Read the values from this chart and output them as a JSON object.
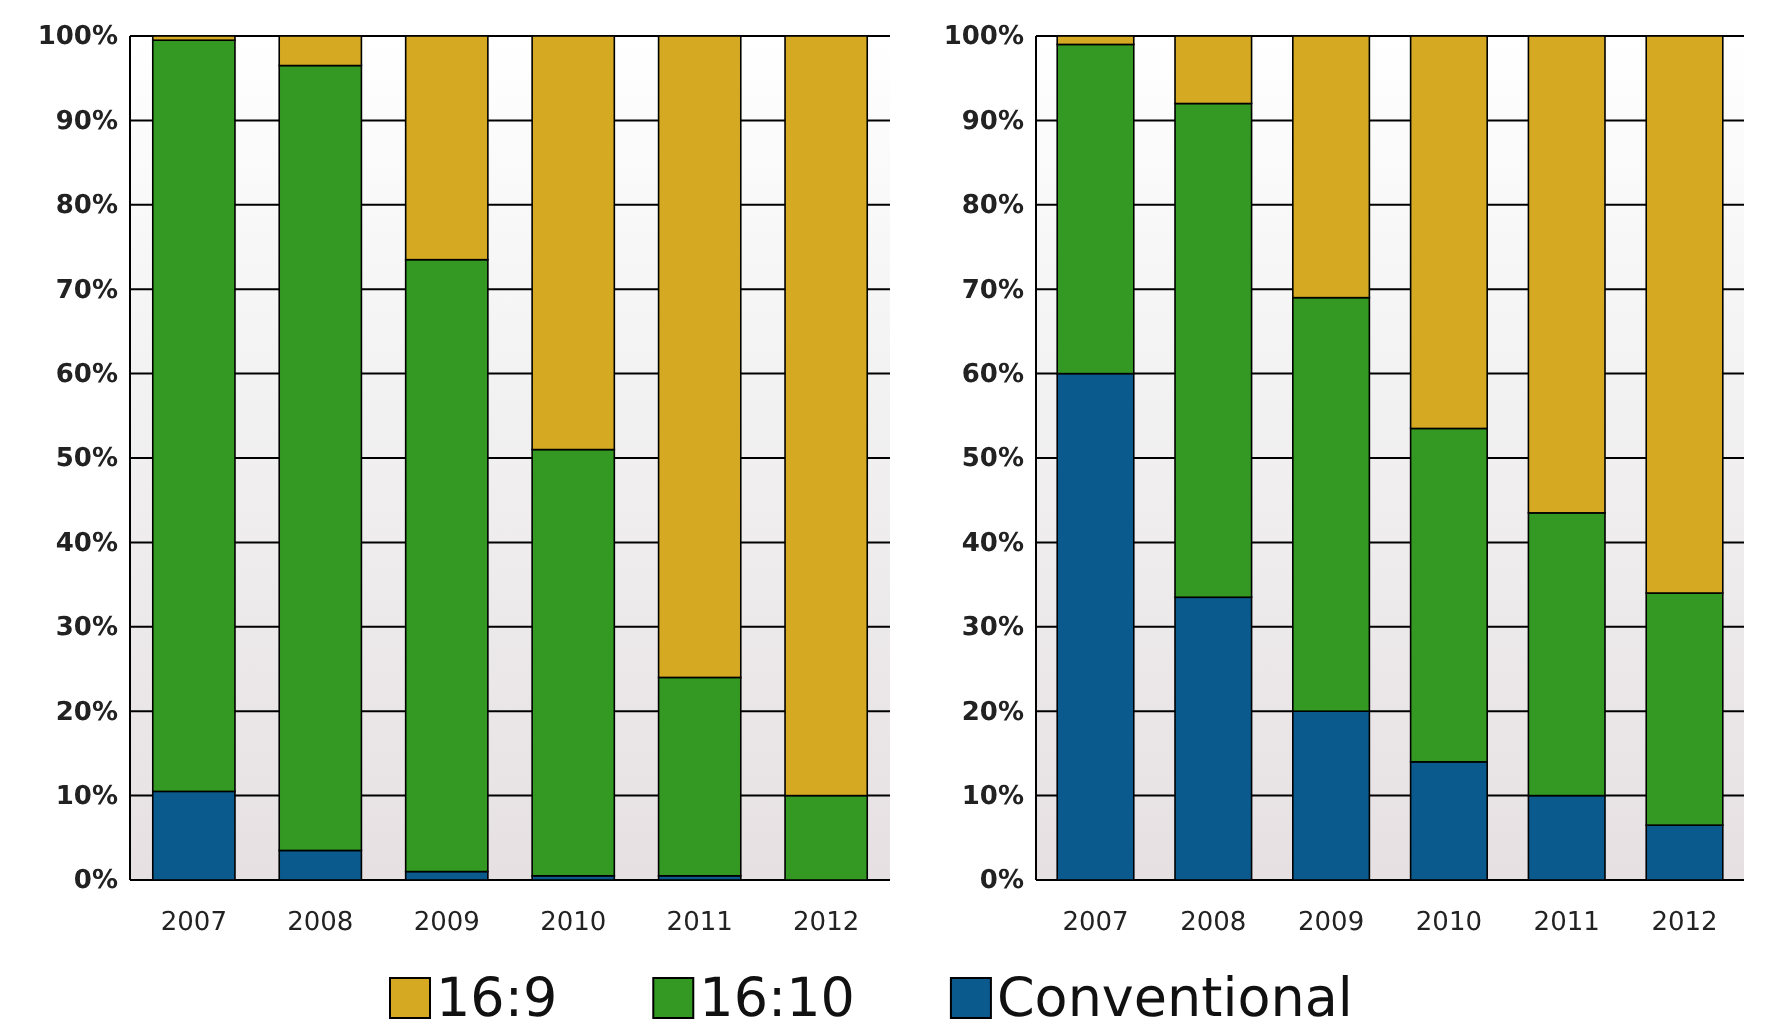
{
  "chart_data": [
    {
      "type": "bar",
      "stacked": true,
      "categories": [
        "2007",
        "2008",
        "2009",
        "2010",
        "2011",
        "2012"
      ],
      "ylim": [
        0,
        100
      ],
      "yticks": [
        {
          "value": 0,
          "label": "0%"
        },
        {
          "value": 10,
          "label": "10%"
        },
        {
          "value": 20,
          "label": "20%"
        },
        {
          "value": 30,
          "label": "30%"
        },
        {
          "value": 40,
          "label": "40%"
        },
        {
          "value": 50,
          "label": "50%"
        },
        {
          "value": 60,
          "label": "60%"
        },
        {
          "value": 70,
          "label": "70%"
        },
        {
          "value": 80,
          "label": "80%"
        },
        {
          "value": 90,
          "label": "90%"
        },
        {
          "value": 100,
          "label": "100%"
        }
      ],
      "grid": "y",
      "legend": "bottom",
      "series": [
        {
          "name": "Conventional",
          "color": "#0b5a8e",
          "values": [
            10.5,
            3.5,
            1,
            0.5,
            0.5,
            0
          ]
        },
        {
          "name": "16:10",
          "color": "#339922",
          "values": [
            89,
            93,
            72.5,
            50.5,
            23.5,
            10
          ]
        },
        {
          "name": "16:9",
          "color": "#d5aa22",
          "values": [
            0.5,
            3.5,
            26.5,
            49,
            76,
            90
          ]
        }
      ]
    },
    {
      "type": "bar",
      "stacked": true,
      "categories": [
        "2007",
        "2008",
        "2009",
        "2010",
        "2011",
        "2012"
      ],
      "ylim": [
        0,
        100
      ],
      "yticks": [
        {
          "value": 0,
          "label": "0%"
        },
        {
          "value": 10,
          "label": "10%"
        },
        {
          "value": 20,
          "label": "20%"
        },
        {
          "value": 30,
          "label": "30%"
        },
        {
          "value": 40,
          "label": "40%"
        },
        {
          "value": 50,
          "label": "50%"
        },
        {
          "value": 60,
          "label": "60%"
        },
        {
          "value": 70,
          "label": "70%"
        },
        {
          "value": 80,
          "label": "80%"
        },
        {
          "value": 90,
          "label": "90%"
        },
        {
          "value": 100,
          "label": "100%"
        }
      ],
      "grid": "y",
      "series": [
        {
          "color": "#0b5a8e",
          "values": [
            60,
            33.5,
            20,
            14,
            10,
            6.5
          ]
        },
        {
          "color": "#339922",
          "values": [
            39,
            58.5,
            49,
            39.5,
            33.5,
            27.5
          ]
        },
        {
          "color": "#d5aa22",
          "values": [
            1,
            8,
            31,
            46.5,
            56.5,
            66
          ]
        }
      ]
    }
  ]
}
